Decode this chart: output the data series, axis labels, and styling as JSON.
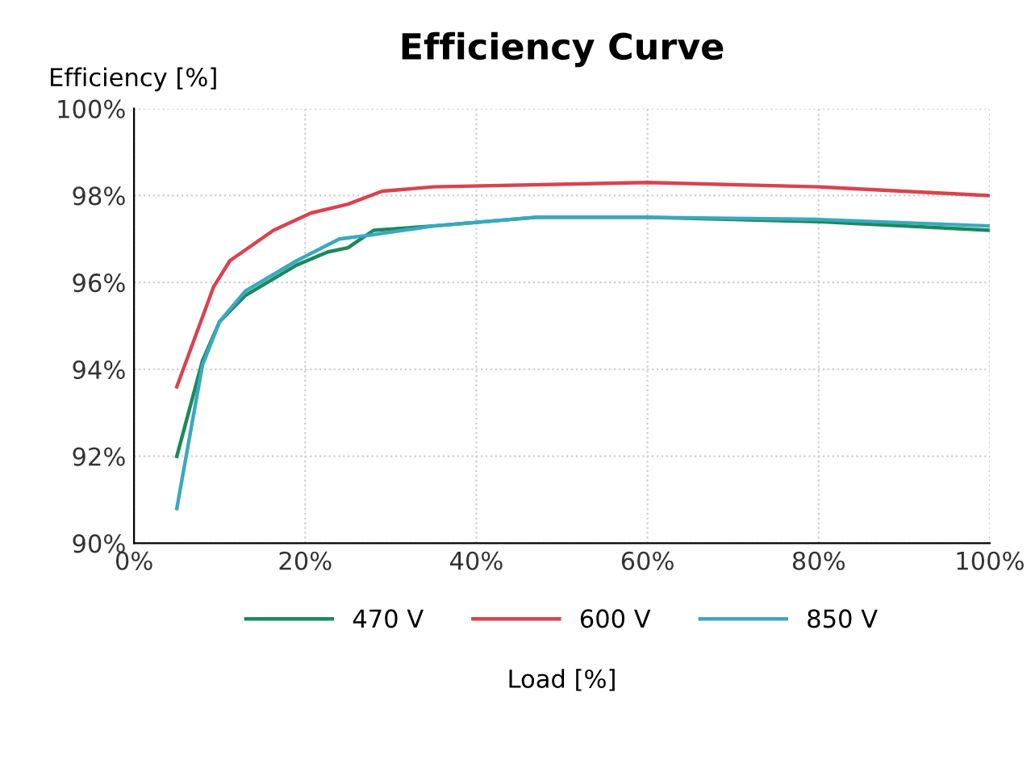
{
  "chart_data": {
    "type": "line",
    "title": "Efficiency Curve",
    "ylabel": "Efficiency [%]",
    "xlabel": "Load [%]",
    "xlim": [
      0,
      100
    ],
    "xticks": [
      {
        "value": 0,
        "label": "0%"
      },
      {
        "value": 20,
        "label": "20%"
      },
      {
        "value": 40,
        "label": "40%"
      },
      {
        "value": 60,
        "label": "60%"
      },
      {
        "value": 80,
        "label": "80%"
      },
      {
        "value": 100,
        "label": "100%"
      }
    ],
    "ylim": [
      90,
      100
    ],
    "yticks": [
      {
        "value": 90,
        "label": "90%"
      },
      {
        "value": 92,
        "label": "92%"
      },
      {
        "value": 94,
        "label": "94%"
      },
      {
        "value": 96,
        "label": "96%"
      },
      {
        "value": 98,
        "label": "98%"
      },
      {
        "value": 100,
        "label": "100%"
      }
    ],
    "grid": true,
    "legend": "bottom",
    "line_style": "solid",
    "series": [
      {
        "name": "470 V",
        "color": "#1a8a5a",
        "x": [
          5,
          8,
          10,
          13,
          19,
          22.6,
          25,
          28,
          35,
          47,
          60,
          80,
          100
        ],
        "values": [
          92.0,
          94.2,
          95.1,
          95.7,
          96.4,
          96.7,
          96.8,
          97.2,
          97.3,
          97.5,
          97.5,
          97.4,
          97.2
        ]
      },
      {
        "name": "600 V",
        "color": "#d9434f",
        "x": [
          5,
          9.3,
          11.2,
          16.3,
          20.7,
          25,
          29,
          35,
          60,
          80,
          100
        ],
        "values": [
          93.6,
          95.9,
          96.5,
          97.2,
          97.6,
          97.8,
          98.1,
          98.2,
          98.3,
          98.2,
          98.0
        ]
      },
      {
        "name": "850 V",
        "color": "#3aa8c0",
        "x": [
          5,
          8,
          10,
          13,
          19,
          24,
          28,
          35,
          47,
          60,
          80,
          100
        ],
        "values": [
          90.8,
          94.1,
          95.1,
          95.8,
          96.5,
          97.0,
          97.1,
          97.3,
          97.5,
          97.5,
          97.45,
          97.3
        ]
      }
    ]
  }
}
